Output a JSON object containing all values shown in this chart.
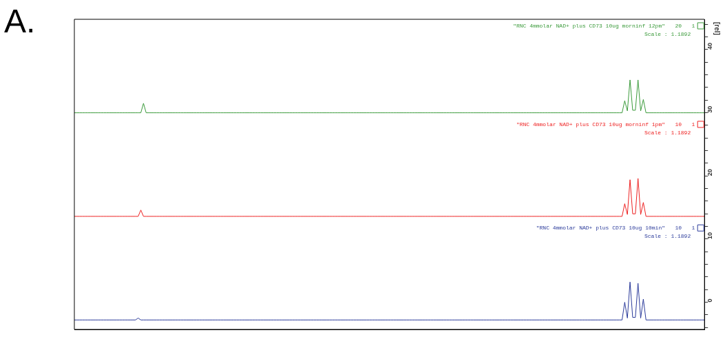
{
  "chart_data": {
    "type": "line",
    "title": "A.",
    "legend": "top right",
    "ylabel": "[rel]",
    "tick_labels": "y",
    "categories": [
      null,
      null,
      null,
      null,
      null,
      null,
      null,
      null,
      null,
      null,
      null,
      null,
      null,
      null,
      null,
      null,
      null,
      null,
      null,
      null,
      null,
      null,
      null,
      null,
      null,
      null,
      null,
      null,
      null,
      null,
      null,
      null,
      null,
      null,
      null,
      null,
      null,
      null,
      null,
      null,
      null,
      null,
      null,
      null,
      null,
      null,
      null,
      null,
      null,
      null,
      null,
      null,
      null,
      null,
      null,
      null,
      null,
      null,
      null,
      null,
      null,
      null,
      null,
      null,
      null,
      null,
      null,
      null,
      null,
      null,
      null,
      null,
      null,
      null,
      null,
      null,
      null,
      null,
      null,
      null,
      null,
      null,
      null,
      null,
      null,
      null,
      null,
      null,
      null,
      null,
      null,
      null,
      null,
      null,
      null,
      null,
      null,
      null,
      null,
      null,
      null,
      null,
      null,
      null,
      null,
      null,
      null,
      null,
      null,
      null,
      null,
      null,
      null,
      null,
      null,
      null,
      null,
      null,
      null,
      null,
      null,
      null,
      null,
      null,
      null,
      null,
      null,
      null,
      null,
      null,
      null,
      null,
      null,
      null,
      null,
      null,
      null,
      null,
      null,
      null,
      null,
      null,
      null,
      null,
      null,
      null,
      null,
      null,
      null,
      null,
      null,
      null,
      null,
      null,
      null,
      null,
      null,
      null,
      null,
      null,
      null,
      null,
      null,
      null,
      null,
      null,
      null,
      null,
      null,
      null,
      null,
      null,
      null,
      null,
      null,
      null,
      null,
      null,
      null,
      null,
      null,
      null,
      null,
      null,
      null,
      null,
      null,
      null,
      null,
      null,
      null,
      null,
      null,
      null,
      null,
      null,
      null,
      null,
      null,
      null,
      null,
      null,
      null,
      null,
      null,
      null,
      null,
      null,
      null,
      null,
      null,
      null,
      null,
      null,
      null,
      null,
      null,
      null,
      null,
      null,
      null,
      null,
      null,
      null,
      null,
      null,
      null,
      null,
      null,
      null,
      null,
      null,
      null,
      null,
      null,
      null,
      null,
      null
    ],
    "series": [
      {
        "name": "\"RNC 4mmolar NAD+ plus CD73 10ug morninf 12pm\"   20   1",
        "color": "#3a9a3a",
        "values": [
          30,
          30,
          30,
          30,
          30,
          30,
          30,
          30,
          30,
          30,
          30,
          30,
          30,
          30,
          30,
          30,
          30,
          30,
          30,
          30,
          30,
          30,
          30,
          30,
          30,
          30,
          31.5,
          30,
          30,
          30,
          30,
          30,
          30,
          30,
          30,
          30,
          30,
          30,
          30,
          30,
          30,
          30,
          30,
          30,
          30,
          30,
          30,
          30,
          30,
          30,
          30,
          30,
          30,
          30,
          30,
          30,
          30,
          30,
          30,
          30,
          30,
          30,
          30,
          30,
          30,
          30,
          30,
          30,
          30,
          30,
          30,
          30,
          30,
          30,
          30,
          30,
          30,
          30,
          30,
          30,
          30,
          30,
          30,
          30,
          30,
          30,
          30,
          30,
          30,
          30,
          30,
          30,
          30,
          30,
          30,
          30,
          30,
          30,
          30,
          30,
          30,
          30,
          30,
          30,
          30,
          30,
          30,
          30,
          30,
          30,
          30,
          30,
          30,
          30,
          30,
          30,
          30,
          30,
          30,
          30,
          30,
          30,
          30,
          30,
          30,
          30,
          30,
          30,
          30,
          30,
          30,
          30,
          30,
          30,
          30,
          30,
          30,
          30,
          30,
          30,
          30,
          30,
          30,
          30,
          30,
          30,
          30,
          30,
          30,
          30,
          30,
          30,
          30,
          30,
          30,
          30,
          30,
          30,
          30,
          30,
          30,
          30,
          30,
          30,
          30,
          30,
          30,
          30,
          30,
          30,
          30,
          30,
          30,
          30,
          30,
          30,
          30,
          30,
          30,
          30,
          30,
          30,
          30,
          30,
          30,
          30,
          30,
          30,
          30,
          30,
          30,
          30,
          30,
          30,
          30,
          30,
          30,
          30,
          30,
          30,
          30,
          30,
          30,
          30,
          30,
          30,
          30,
          31.9,
          30.3,
          35.2,
          30.4,
          30.4,
          35.2,
          30.3,
          32.1,
          30,
          30,
          30,
          30,
          30,
          30,
          30,
          30,
          30,
          30,
          30,
          30,
          30,
          30,
          30,
          30,
          30,
          30,
          30,
          30,
          30,
          30,
          30
        ]
      },
      {
        "name": "\"RNC 4mmolar NAD+ plus CD73 10ug morninf 1pm\"   10   1",
        "color": "#ee2020",
        "values": [
          13.6,
          13.6,
          13.6,
          13.6,
          13.6,
          13.6,
          13.6,
          13.6,
          13.6,
          13.6,
          13.6,
          13.6,
          13.6,
          13.6,
          13.6,
          13.6,
          13.6,
          13.6,
          13.6,
          13.6,
          13.6,
          13.6,
          13.6,
          13.6,
          13.6,
          14.6,
          13.6,
          13.6,
          13.6,
          13.6,
          13.6,
          13.6,
          13.6,
          13.6,
          13.6,
          13.6,
          13.6,
          13.6,
          13.6,
          13.6,
          13.6,
          13.6,
          13.6,
          13.6,
          13.6,
          13.6,
          13.6,
          13.6,
          13.6,
          13.6,
          13.6,
          13.6,
          13.6,
          13.6,
          13.6,
          13.6,
          13.6,
          13.6,
          13.6,
          13.6,
          13.6,
          13.6,
          13.6,
          13.6,
          13.6,
          13.6,
          13.6,
          13.6,
          13.6,
          13.6,
          13.6,
          13.6,
          13.6,
          13.6,
          13.6,
          13.6,
          13.6,
          13.6,
          13.6,
          13.6,
          13.6,
          13.6,
          13.6,
          13.6,
          13.6,
          13.6,
          13.6,
          13.6,
          13.6,
          13.6,
          13.6,
          13.6,
          13.6,
          13.6,
          13.6,
          13.6,
          13.6,
          13.6,
          13.6,
          13.6,
          13.6,
          13.6,
          13.6,
          13.6,
          13.6,
          13.6,
          13.6,
          13.6,
          13.6,
          13.6,
          13.6,
          13.6,
          13.6,
          13.6,
          13.6,
          13.6,
          13.6,
          13.6,
          13.6,
          13.6,
          13.6,
          13.6,
          13.6,
          13.6,
          13.6,
          13.6,
          13.6,
          13.6,
          13.6,
          13.6,
          13.6,
          13.6,
          13.6,
          13.6,
          13.6,
          13.6,
          13.6,
          13.6,
          13.6,
          13.6,
          13.6,
          13.6,
          13.6,
          13.6,
          13.6,
          13.6,
          13.6,
          13.6,
          13.6,
          13.6,
          13.6,
          13.6,
          13.6,
          13.6,
          13.6,
          13.6,
          13.6,
          13.6,
          13.6,
          13.6,
          13.6,
          13.6,
          13.6,
          13.6,
          13.6,
          13.6,
          13.6,
          13.6,
          13.6,
          13.6,
          13.6,
          13.6,
          13.6,
          13.6,
          13.6,
          13.6,
          13.6,
          13.6,
          13.6,
          13.6,
          13.6,
          13.6,
          13.6,
          13.6,
          13.6,
          13.6,
          13.6,
          13.6,
          13.6,
          13.6,
          13.6,
          13.6,
          13.6,
          13.6,
          13.6,
          13.6,
          13.6,
          13.6,
          13.6,
          13.6,
          13.6,
          13.6,
          13.6,
          13.6,
          13.6,
          13.6,
          13.6,
          15.6,
          13.9,
          19.4,
          14.0,
          14.0,
          19.6,
          13.9,
          15.8,
          13.6,
          13.6,
          13.6,
          13.6,
          13.6,
          13.6,
          13.6,
          13.6,
          13.6,
          13.6,
          13.6,
          13.6,
          13.6,
          13.6,
          13.6,
          13.6,
          13.6,
          13.6,
          13.6,
          13.6,
          13.6,
          13.6,
          13.6
        ]
      },
      {
        "name": "\"RNC 4mmolar NAD+ plus CD73 10ug 10min\"   10   1",
        "color": "#2a3a9a",
        "values": [
          -2.8,
          -2.8,
          -2.8,
          -2.8,
          -2.8,
          -2.8,
          -2.8,
          -2.8,
          -2.8,
          -2.8,
          -2.8,
          -2.8,
          -2.8,
          -2.8,
          -2.8,
          -2.8,
          -2.8,
          -2.8,
          -2.8,
          -2.8,
          -2.8,
          -2.8,
          -2.8,
          -2.8,
          -2.5,
          -2.8,
          -2.8,
          -2.8,
          -2.8,
          -2.8,
          -2.8,
          -2.8,
          -2.8,
          -2.8,
          -2.8,
          -2.8,
          -2.8,
          -2.8,
          -2.8,
          -2.8,
          -2.8,
          -2.8,
          -2.8,
          -2.8,
          -2.8,
          -2.8,
          -2.8,
          -2.8,
          -2.8,
          -2.8,
          -2.8,
          -2.8,
          -2.8,
          -2.8,
          -2.8,
          -2.8,
          -2.8,
          -2.8,
          -2.8,
          -2.8,
          -2.8,
          -2.8,
          -2.8,
          -2.8,
          -2.8,
          -2.8,
          -2.8,
          -2.8,
          -2.8,
          -2.8,
          -2.8,
          -2.8,
          -2.8,
          -2.8,
          -2.8,
          -2.8,
          -2.8,
          -2.8,
          -2.8,
          -2.8,
          -2.8,
          -2.8,
          -2.8,
          -2.8,
          -2.8,
          -2.8,
          -2.8,
          -2.8,
          -2.8,
          -2.8,
          -2.8,
          -2.8,
          -2.8,
          -2.8,
          -2.8,
          -2.8,
          -2.8,
          -2.8,
          -2.8,
          -2.8,
          -2.8,
          -2.8,
          -2.8,
          -2.8,
          -2.8,
          -2.8,
          -2.8,
          -2.8,
          -2.8,
          -2.8,
          -2.8,
          -2.8,
          -2.8,
          -2.8,
          -2.8,
          -2.8,
          -2.8,
          -2.8,
          -2.8,
          -2.8,
          -2.8,
          -2.8,
          -2.8,
          -2.8,
          -2.8,
          -2.8,
          -2.8,
          -2.8,
          -2.8,
          -2.8,
          -2.8,
          -2.8,
          -2.8,
          -2.8,
          -2.8,
          -2.8,
          -2.8,
          -2.8,
          -2.8,
          -2.8,
          -2.8,
          -2.8,
          -2.8,
          -2.8,
          -2.8,
          -2.8,
          -2.8,
          -2.8,
          -2.8,
          -2.8,
          -2.8,
          -2.8,
          -2.8,
          -2.8,
          -2.8,
          -2.8,
          -2.8,
          -2.8,
          -2.8,
          -2.8,
          -2.8,
          -2.8,
          -2.8,
          -2.8,
          -2.8,
          -2.8,
          -2.8,
          -2.8,
          -2.8,
          -2.8,
          -2.8,
          -2.8,
          -2.8,
          -2.8,
          -2.8,
          -2.8,
          -2.8,
          -2.8,
          -2.8,
          -2.8,
          -2.8,
          -2.8,
          -2.8,
          -2.8,
          -2.8,
          -2.8,
          -2.8,
          -2.8,
          -2.8,
          -2.8,
          -2.8,
          -2.8,
          -2.8,
          -2.8,
          -2.8,
          -2.8,
          -2.8,
          -2.8,
          -2.8,
          -2.8,
          -2.8,
          -2.8,
          -2.8,
          -2.8,
          -2.8,
          -2.8,
          -2.8,
          0.0,
          -2.5,
          3.2,
          -2.4,
          -2.4,
          3.0,
          -2.5,
          0.5,
          -2.8,
          -2.8,
          -2.8,
          -2.8,
          -2.8,
          -2.8,
          -2.8,
          -2.8,
          -2.8,
          -2.8,
          -2.8,
          -2.8,
          -2.8,
          -2.8,
          -2.8,
          -2.8,
          -2.8,
          -2.8,
          -2.8,
          -2.8,
          -2.8,
          -2.8,
          -2.8
        ]
      }
    ],
    "annotations": [
      "Scale : 1.1892",
      "Scale : 1.1892",
      "Scale : 1.1892"
    ],
    "ylim": [
      -4.3,
      44.8
    ],
    "yticks": [
      {
        "value": -4,
        "label": null
      },
      {
        "value": -2,
        "label": null
      },
      0,
      {
        "value": 2,
        "label": null
      },
      {
        "value": 4,
        "label": null
      },
      {
        "value": 6,
        "label": null
      },
      {
        "value": 8,
        "label": null
      },
      10,
      {
        "value": 12,
        "label": null
      },
      {
        "value": 14,
        "label": null
      },
      {
        "value": 16,
        "label": null
      },
      {
        "value": 18,
        "label": null
      },
      20,
      {
        "value": 22,
        "label": null
      },
      {
        "value": 24,
        "label": null
      },
      {
        "value": 26,
        "label": null
      },
      {
        "value": 28,
        "label": null
      },
      30,
      {
        "value": 32,
        "label": null
      },
      {
        "value": 34,
        "label": null
      },
      {
        "value": 36,
        "label": null
      },
      {
        "value": 38,
        "label": null
      },
      40,
      {
        "value": 42,
        "label": null
      },
      {
        "value": 44,
        "label": null
      }
    ]
  }
}
